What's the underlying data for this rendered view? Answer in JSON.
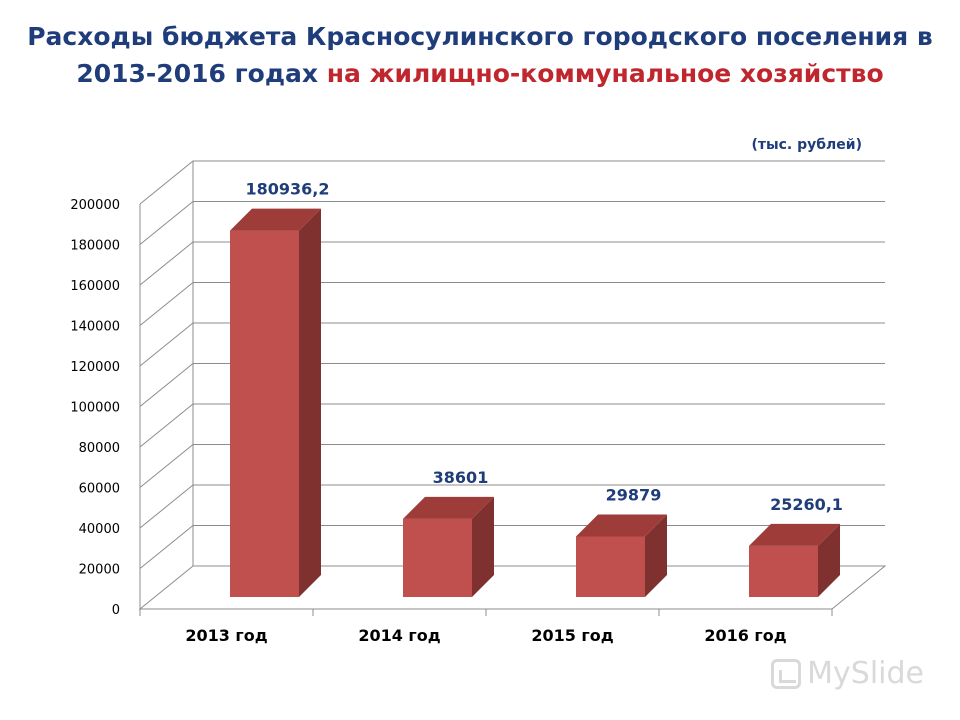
{
  "header": {
    "title_part1": "Расходы бюджета Красносулинского городского поселения в 2013-2016 годах ",
    "title_part2": "на жилищно-коммунальное хозяйство",
    "units": "(тыс. рублей)"
  },
  "watermark": {
    "text": "MySlide"
  },
  "colors": {
    "title": "#1F3D7A",
    "title_accent": "#C0262D",
    "bar_front": "#C0504D",
    "bar_side": "#7F3130",
    "bar_top": "#9E3C3A",
    "grid": "#8C8C8C",
    "data_label": "#1F3D7A"
  },
  "chart_data": {
    "type": "bar",
    "style": "3d-column",
    "categories": [
      "2013 год",
      "2014 год",
      "2015 год",
      "2016 год"
    ],
    "values": [
      180936.2,
      38601,
      29879,
      25260.1
    ],
    "data_labels": [
      "180936,2",
      "38601",
      "29879",
      "25260,1"
    ],
    "y_ticks": [
      "0",
      "20000",
      "40000",
      "60000",
      "80000",
      "100000",
      "120000",
      "140000",
      "160000",
      "180000",
      "200000"
    ],
    "ylim": [
      0,
      200000
    ],
    "grid": true,
    "legend": "none"
  }
}
